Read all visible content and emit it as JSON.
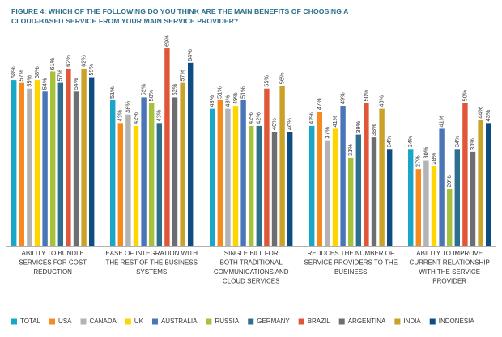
{
  "title_lines": [
    "FIGURE 4: WHICH OF THE FOLLOWING DO YOU THINK ARE THE MAIN BENEFITS OF CHOOSING A",
    "CLOUD-BASED SERVICE FROM YOUR MAIN SERVICE PROVIDER?"
  ],
  "chart_data": {
    "type": "bar",
    "categories": [
      [
        "ABILITY TO BUNDLE",
        "SERVICES FOR COST",
        "REDUCTION"
      ],
      [
        "EASE OF INTEGRATION WITH",
        "THE REST OF THE BUSINESS",
        "SYSTEMS"
      ],
      [
        "SINGLE BILL FOR",
        "BOTH TRADITIONAL",
        "COMMUNICATIONS AND",
        "CLOUD SERVICES"
      ],
      [
        "REDUCES THE NUMBER OF",
        "SERVICE PROVIDERS TO THE",
        "BUSINESS"
      ],
      [
        "ABILITY TO IMPROVE",
        "CURRENT RELATIONSHIP",
        "WITH THE SERVICE",
        "PROVIDER"
      ]
    ],
    "series": [
      {
        "name": "TOTAL",
        "color": "#1aa6c8",
        "values": [
          58,
          51,
          48,
          42,
          34
        ]
      },
      {
        "name": "USA",
        "color": "#f58a1f",
        "values": [
          57,
          43,
          51,
          47,
          27
        ]
      },
      {
        "name": "CANADA",
        "color": "#b3b3b3",
        "values": [
          55,
          46,
          48,
          37,
          30
        ]
      },
      {
        "name": "UK",
        "color": "#ffd500",
        "values": [
          58,
          42,
          49,
          41,
          28
        ]
      },
      {
        "name": "AUSTRALIA",
        "color": "#4a76b8",
        "values": [
          54,
          52,
          51,
          49,
          41
        ]
      },
      {
        "name": "RUSSIA",
        "color": "#a6c23a",
        "values": [
          61,
          50,
          42,
          31,
          20
        ]
      },
      {
        "name": "GERMANY",
        "color": "#2e6f8e",
        "values": [
          57,
          43,
          42,
          39,
          34
        ]
      },
      {
        "name": "BRAZIL",
        "color": "#df5638",
        "values": [
          62,
          69,
          55,
          50,
          50
        ]
      },
      {
        "name": "ARGENTINA",
        "color": "#6d6e71",
        "values": [
          54,
          52,
          40,
          38,
          33
        ]
      },
      {
        "name": "INDIA",
        "color": "#c9a227",
        "values": [
          62,
          57,
          56,
          48,
          44
        ]
      },
      {
        "name": "INDONESIA",
        "color": "#0f4c81",
        "values": [
          59,
          64,
          40,
          34,
          43
        ]
      }
    ],
    "value_suffix": "%",
    "ylim": [
      0,
      70
    ],
    "grid": false,
    "legend_position": "bottom"
  }
}
